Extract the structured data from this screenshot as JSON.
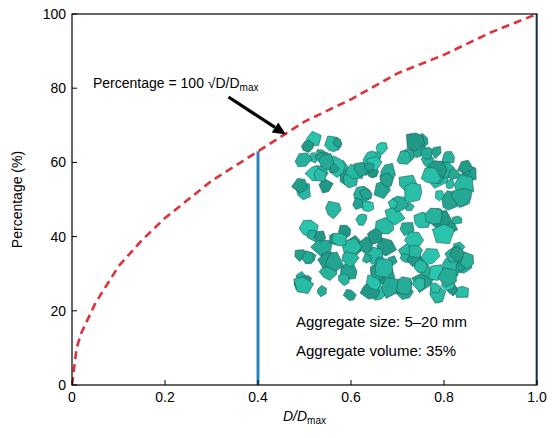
{
  "chart_data": {
    "type": "line",
    "x_label": {
      "text": "D/D",
      "sub": "max"
    },
    "y_label": "Percentage (%)",
    "xlim": [
      0,
      1
    ],
    "xticks": [
      0,
      0.2,
      0.4,
      0.6,
      0.8,
      {
        "value": 1,
        "label": "1.0"
      }
    ],
    "ylim": [
      0,
      100
    ],
    "yticks": [
      0,
      20,
      40,
      60,
      80,
      100
    ],
    "grid": false,
    "series": [
      {
        "type": "line",
        "line_style": "dashed",
        "color": "#e0303a",
        "x": [
          0,
          0.01,
          0.02,
          0.05,
          0.1,
          0.15,
          0.2,
          0.3,
          0.4,
          0.5,
          0.6,
          0.7,
          0.8,
          0.9,
          1
        ],
        "values": [
          0,
          10,
          14,
          22,
          32,
          39,
          45,
          55,
          63,
          71,
          77,
          84,
          89,
          95,
          100
        ]
      },
      {
        "type": "stem",
        "color": "#2a86c0",
        "x": [
          0.4,
          1
        ],
        "values": [
          63,
          100
        ]
      }
    ],
    "annotations": [
      {
        "text": "Percentage = 100 √D/D",
        "sub": "max",
        "point": [
          0.46,
          67.5
        ]
      },
      {
        "text": "Aggregate size: 5–20 mm"
      },
      {
        "text": "Aggregate volume: 35%"
      }
    ]
  }
}
